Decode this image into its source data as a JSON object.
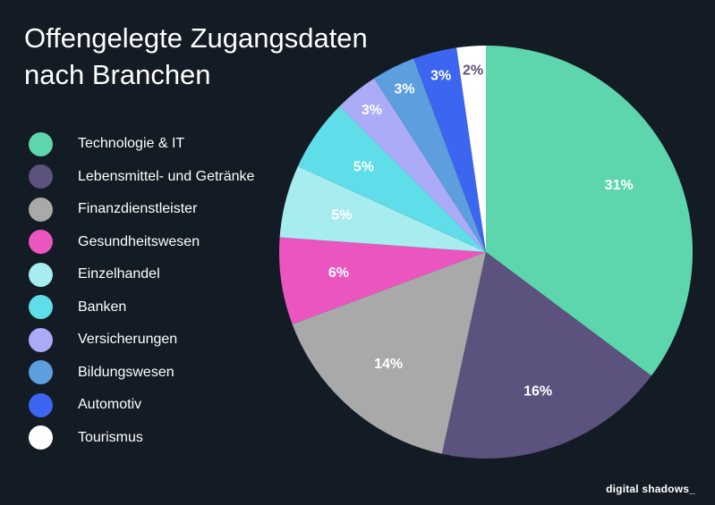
{
  "title_lines": [
    "Offengelegte Zugangsdaten",
    "nach Branchen"
  ],
  "brand": "digital shadows_",
  "chart_data": {
    "type": "pie",
    "title": "Offengelegte Zugangsdaten nach Branchen",
    "legend_position": "left",
    "slices": [
      {
        "label": "Technologie & IT",
        "value": 31,
        "display": "31%",
        "color": "#5dd6ad",
        "text_color": "#ffffff"
      },
      {
        "label": "Lebensmittel- und Getränke",
        "value": 16,
        "display": "16%",
        "color": "#5b527e",
        "text_color": "#ffffff"
      },
      {
        "label": "Finanzdienstleister",
        "value": 14,
        "display": "14%",
        "color": "#a9a9a9",
        "text_color": "#ffffff"
      },
      {
        "label": "Gesundheitswesen",
        "value": 6,
        "display": "6%",
        "color": "#eb55c0",
        "text_color": "#ffffff"
      },
      {
        "label": "Einzelhandel",
        "value": 5,
        "display": "5%",
        "color": "#a7ecef",
        "text_color": "#ffffff"
      },
      {
        "label": "Banken",
        "value": 5,
        "display": "5%",
        "color": "#5fdde8",
        "text_color": "#ffffff"
      },
      {
        "label": "Versicherungen",
        "value": 3,
        "display": "3%",
        "color": "#ababf8",
        "text_color": "#ffffff"
      },
      {
        "label": "Bildungswesen",
        "value": 3,
        "display": "3%",
        "color": "#5c9ede",
        "text_color": "#ffffff"
      },
      {
        "label": "Automotiv",
        "value": 3,
        "display": "3%",
        "color": "#3c66f0",
        "text_color": "#ffffff"
      },
      {
        "label": "Tourismus",
        "value": 2,
        "display": "2%",
        "color": "#ffffff",
        "text_color": "#5b527e"
      }
    ]
  }
}
